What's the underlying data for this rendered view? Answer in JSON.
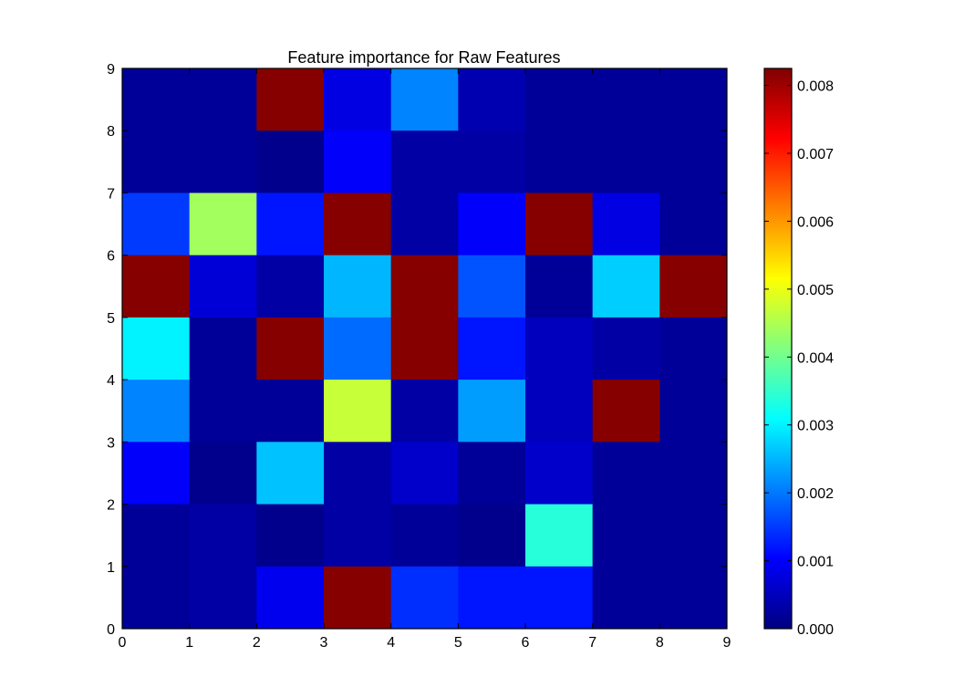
{
  "chart_data": {
    "type": "heatmap",
    "title": "Feature importance for Raw Features",
    "xlabel": "",
    "ylabel": "",
    "xlim": [
      0,
      9
    ],
    "ylim": [
      0,
      9
    ],
    "x_ticks": [
      "0",
      "1",
      "2",
      "3",
      "4",
      "5",
      "6",
      "7",
      "8",
      "9"
    ],
    "y_ticks": [
      "0",
      "1",
      "2",
      "3",
      "4",
      "5",
      "6",
      "7",
      "8",
      "9"
    ],
    "colormap": "jet",
    "colorbar": {
      "min": 0,
      "max": 0.00825,
      "ticks": [
        {
          "value": 0.0,
          "label": "0.000"
        },
        {
          "value": 0.001,
          "label": "0.001"
        },
        {
          "value": 0.002,
          "label": "0.002"
        },
        {
          "value": 0.003,
          "label": "0.003"
        },
        {
          "value": 0.004,
          "label": "0.004"
        },
        {
          "value": 0.005,
          "label": "0.005"
        },
        {
          "value": 0.006,
          "label": "0.006"
        },
        {
          "value": 0.007,
          "label": "0.007"
        },
        {
          "value": 0.008,
          "label": "0.008"
        }
      ]
    },
    "rows_top_to_bottom": [
      [
        0.0002,
        0.0002,
        0.0082,
        0.0008,
        0.0021,
        0.0004,
        0.0002,
        0.0002,
        0.0002
      ],
      [
        0.0002,
        0.0002,
        0.0001,
        0.001,
        0.0003,
        0.0003,
        0.0002,
        0.0002,
        0.0002
      ],
      [
        0.0015,
        0.0044,
        0.0012,
        0.0082,
        0.0003,
        0.001,
        0.0082,
        0.0008,
        0.0002
      ],
      [
        0.0082,
        0.0007,
        0.0003,
        0.0025,
        0.0082,
        0.0017,
        0.0002,
        0.0027,
        0.0082
      ],
      [
        0.003,
        0.0002,
        0.0082,
        0.0019,
        0.0082,
        0.0012,
        0.0005,
        0.0003,
        0.0002
      ],
      [
        0.0021,
        0.0002,
        0.0002,
        0.0047,
        0.0003,
        0.0023,
        0.0005,
        0.0082,
        0.0002
      ],
      [
        0.001,
        0.0001,
        0.0026,
        0.0003,
        0.0006,
        0.0002,
        0.0006,
        0.0002,
        0.0002
      ],
      [
        0.0002,
        0.0003,
        0.0001,
        0.0003,
        0.0002,
        0.0001,
        0.0034,
        0.0002,
        0.0002
      ],
      [
        0.0002,
        0.0003,
        0.0009,
        0.0082,
        0.0014,
        0.0012,
        0.0012,
        0.0002,
        0.0002
      ]
    ]
  }
}
